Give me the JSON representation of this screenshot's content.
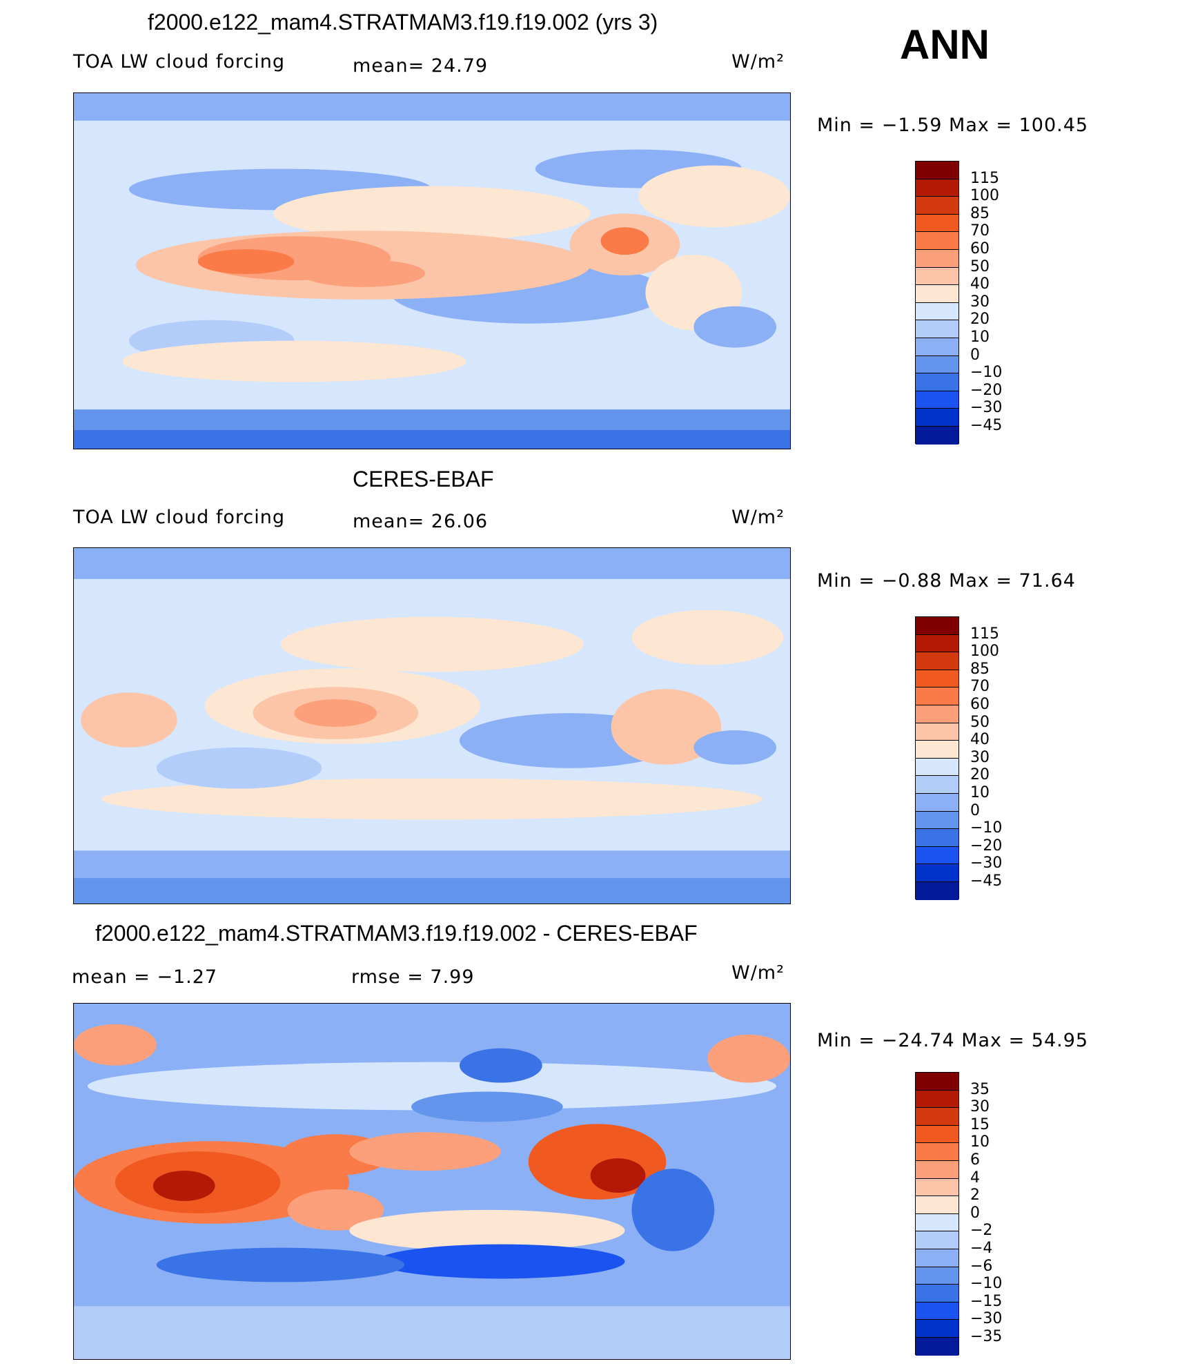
{
  "season": "ANN",
  "units": "W/m²",
  "colors": {
    "lw_scale": [
      "#000066",
      "#001a99",
      "#0033cc",
      "#1a53f0",
      "#3a73e6",
      "#6495ed",
      "#8cb0f5",
      "#b3cdfa",
      "#d6e6fc",
      "#fde6d2",
      "#fcc5a8",
      "#fba07a",
      "#fa7a48",
      "#f05a20",
      "#d43a10",
      "#b31a05",
      "#800000"
    ],
    "diff_scale": [
      "#000066",
      "#001a99",
      "#0033cc",
      "#1a53f0",
      "#3a73e6",
      "#6495ed",
      "#8cb0f5",
      "#b3cdfa",
      "#d6e6fc",
      "#fde6d2",
      "#fcc5a8",
      "#fba07a",
      "#fa7a48",
      "#f05a20",
      "#d43a10",
      "#b31a05",
      "#800000"
    ]
  },
  "panels": [
    {
      "title": "f2000.e122_mam4.STRATMAM3.f19.f19.002 (yrs 3)",
      "left_text": "TOA LW cloud forcing",
      "center_text": "mean=   24.79",
      "min_max": "Min  =    −1.59  Max  =  100.45",
      "levels": [
        "115",
        "100",
        "85",
        "70",
        "60",
        "50",
        "40",
        "30",
        "20",
        "10",
        "0",
        "−10",
        "−20",
        "−30",
        "−45"
      ]
    },
    {
      "title": "CERES-EBAF",
      "left_text": "TOA LW cloud forcing",
      "center_text": "mean=   26.06",
      "min_max": "Min  =    −0.88  Max  =    71.64",
      "levels": [
        "115",
        "100",
        "85",
        "70",
        "60",
        "50",
        "40",
        "30",
        "20",
        "10",
        "0",
        "−10",
        "−20",
        "−30",
        "−45"
      ]
    },
    {
      "title": "f2000.e122_mam4.STRATMAM3.f19.f19.002 - CERES-EBAF",
      "left_text": "mean  =    −1.27",
      "center_text": "rmse  =      7.99",
      "min_max": "Min  =  −24.74  Max  =    54.95",
      "levels": [
        "35",
        "30",
        "15",
        "10",
        "6",
        "4",
        "2",
        "0",
        "−2",
        "−4",
        "−6",
        "−10",
        "−15",
        "−30",
        "−35"
      ]
    }
  ]
}
